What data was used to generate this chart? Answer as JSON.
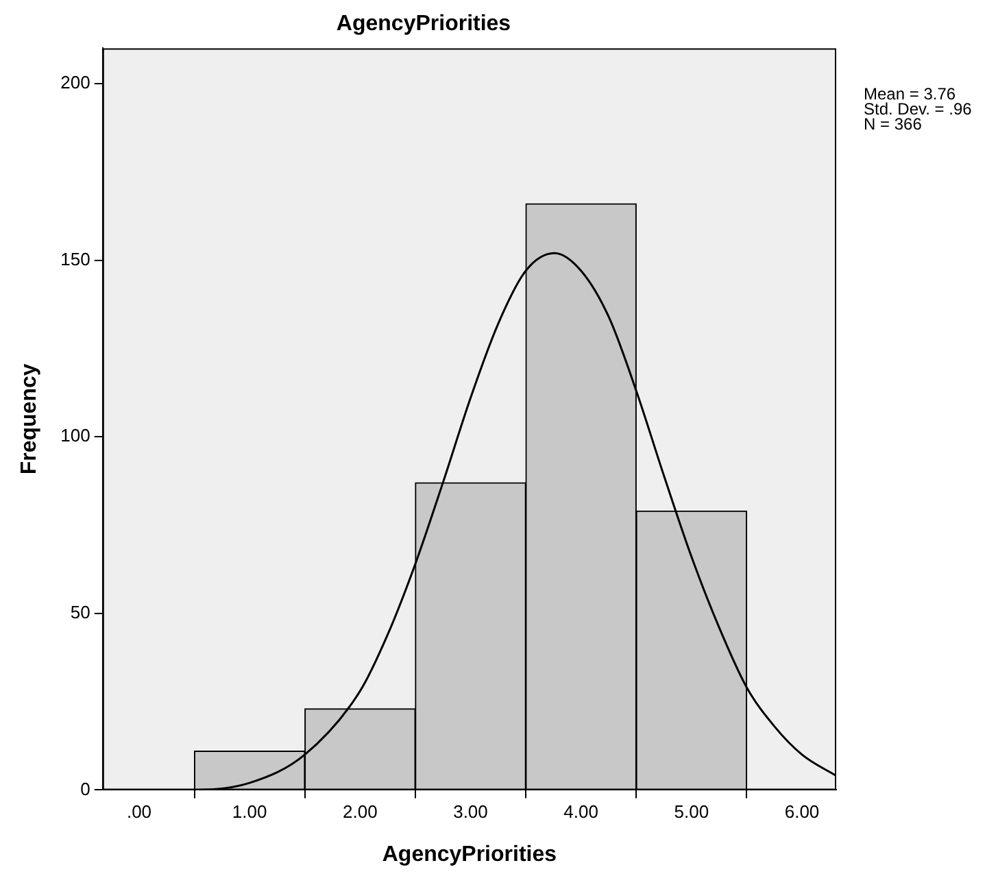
{
  "chart_data": {
    "type": "histogram",
    "title": "AgencyPriorities",
    "xlabel": "AgencyPriorities",
    "ylabel": "Frequency",
    "bins": [
      0.5,
      1.5,
      2.5,
      3.5,
      4.5,
      5.5
    ],
    "values": [
      11,
      23,
      87,
      166,
      79
    ],
    "color": "#c8c8c8",
    "series": [
      {
        "type": "line",
        "color": "#000000",
        "x": [
          -0.33,
          0,
          0.5,
          1,
          1.5,
          2,
          2.25,
          2.5,
          2.75,
          3,
          3.25,
          3.5,
          3.76,
          4,
          4.25,
          4.5,
          4.75,
          5,
          5.25,
          5.5,
          5.75,
          6,
          6.31
        ],
        "values": [
          0,
          0,
          0,
          2,
          10,
          28,
          44,
          64,
          87,
          111,
          132,
          147,
          152,
          147,
          134,
          113,
          89,
          66,
          46,
          29,
          18,
          10,
          4
        ]
      }
    ],
    "marker": "none",
    "line_style": "solid",
    "xlim": [
      -0.33,
      6.31
    ],
    "xticks": [
      {
        "value": 0,
        "label": ".00"
      },
      {
        "value": 1,
        "label": "1.00"
      },
      {
        "value": 2,
        "label": "2.00"
      },
      {
        "value": 3,
        "label": "3.00"
      },
      {
        "value": 4,
        "label": "4.00"
      },
      {
        "value": 5,
        "label": "5.00"
      },
      {
        "value": 6,
        "label": "6.00"
      }
    ],
    "ylim": [
      0,
      210
    ],
    "yticks": [
      0,
      50,
      100,
      150,
      200
    ],
    "grid": false,
    "legend": false,
    "annotations": [
      "Mean = 3.76",
      "Std. Dev. = .96",
      "N = 366"
    ]
  }
}
